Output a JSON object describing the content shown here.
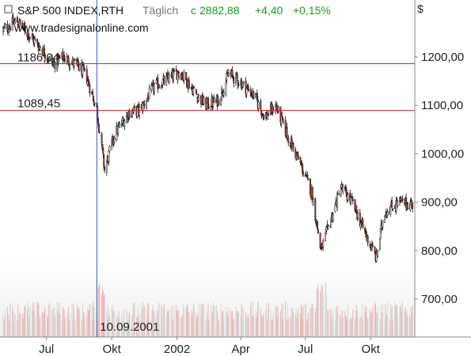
{
  "header": {
    "symbol": "S&P 500 INDEX,RTH",
    "interval": "Täglich",
    "close_label": "c",
    "close_value": "2882,88",
    "change": "+4,40",
    "change_pct": "+0,15%",
    "currency": "$",
    "watermark": "www.tradesignalonline.com"
  },
  "colors": {
    "up_text": "#1a9a1a",
    "red_line": "#cc2222",
    "vline": "#3355cc",
    "axis_bg": "#ffffff",
    "candle_up": "#ffffff",
    "candle_down": "#c0392b",
    "candle_outline": "#111111"
  },
  "annotations": {
    "level_high_label": "1186,04",
    "level_low_label": "1089,45",
    "vline_date_label": "10.09.2001"
  },
  "chart_data": {
    "type": "candlestick",
    "title": "S&P 500 INDEX,RTH",
    "x_labels": [
      "Jul",
      "Okt",
      "2002",
      "Apr",
      "Jul",
      "Okt"
    ],
    "y_ticks": [
      "1200,00",
      "1100,00",
      "1000,00",
      "900,00",
      "800,00",
      "700,00"
    ],
    "y_tick_values": [
      1200,
      1100,
      1000,
      900,
      800,
      700
    ],
    "ylim": [
      650,
      1290
    ],
    "horizontal_levels": [
      1186.04,
      1089.45
    ],
    "vertical_marker": {
      "date": "10.09.2001"
    },
    "x_range": [
      "2001-05-01",
      "2002-11-30"
    ],
    "series_anchors": [
      {
        "date": "2001-05-01",
        "value": 1255
      },
      {
        "date": "2001-05-20",
        "value": 1275
      },
      {
        "date": "2001-06-10",
        "value": 1240
      },
      {
        "date": "2001-06-25",
        "value": 1215
      },
      {
        "date": "2001-07-10",
        "value": 1185
      },
      {
        "date": "2001-07-25",
        "value": 1200
      },
      {
        "date": "2001-08-10",
        "value": 1185
      },
      {
        "date": "2001-08-25",
        "value": 1165
      },
      {
        "date": "2001-09-10",
        "value": 1092
      },
      {
        "date": "2001-09-21",
        "value": 966
      },
      {
        "date": "2001-10-05",
        "value": 1040
      },
      {
        "date": "2001-10-25",
        "value": 1085
      },
      {
        "date": "2001-11-10",
        "value": 1090
      },
      {
        "date": "2001-11-30",
        "value": 1140
      },
      {
        "date": "2001-12-15",
        "value": 1150
      },
      {
        "date": "2002-01-05",
        "value": 1170
      },
      {
        "date": "2002-01-25",
        "value": 1130
      },
      {
        "date": "2002-02-10",
        "value": 1100
      },
      {
        "date": "2002-02-28",
        "value": 1110
      },
      {
        "date": "2002-03-15",
        "value": 1165
      },
      {
        "date": "2002-03-30",
        "value": 1150
      },
      {
        "date": "2002-04-20",
        "value": 1120
      },
      {
        "date": "2002-05-05",
        "value": 1075
      },
      {
        "date": "2002-05-20",
        "value": 1100
      },
      {
        "date": "2002-06-05",
        "value": 1040
      },
      {
        "date": "2002-06-25",
        "value": 975
      },
      {
        "date": "2002-07-10",
        "value": 920
      },
      {
        "date": "2002-07-23",
        "value": 800
      },
      {
        "date": "2002-08-05",
        "value": 860
      },
      {
        "date": "2002-08-20",
        "value": 930
      },
      {
        "date": "2002-09-05",
        "value": 900
      },
      {
        "date": "2002-09-25",
        "value": 830
      },
      {
        "date": "2002-10-09",
        "value": 785
      },
      {
        "date": "2002-10-20",
        "value": 880
      },
      {
        "date": "2002-11-10",
        "value": 900
      },
      {
        "date": "2002-11-30",
        "value": 895
      }
    ],
    "volume": {
      "shown": true,
      "note": "volume histogram at bottom of plot"
    },
    "grid": false
  }
}
